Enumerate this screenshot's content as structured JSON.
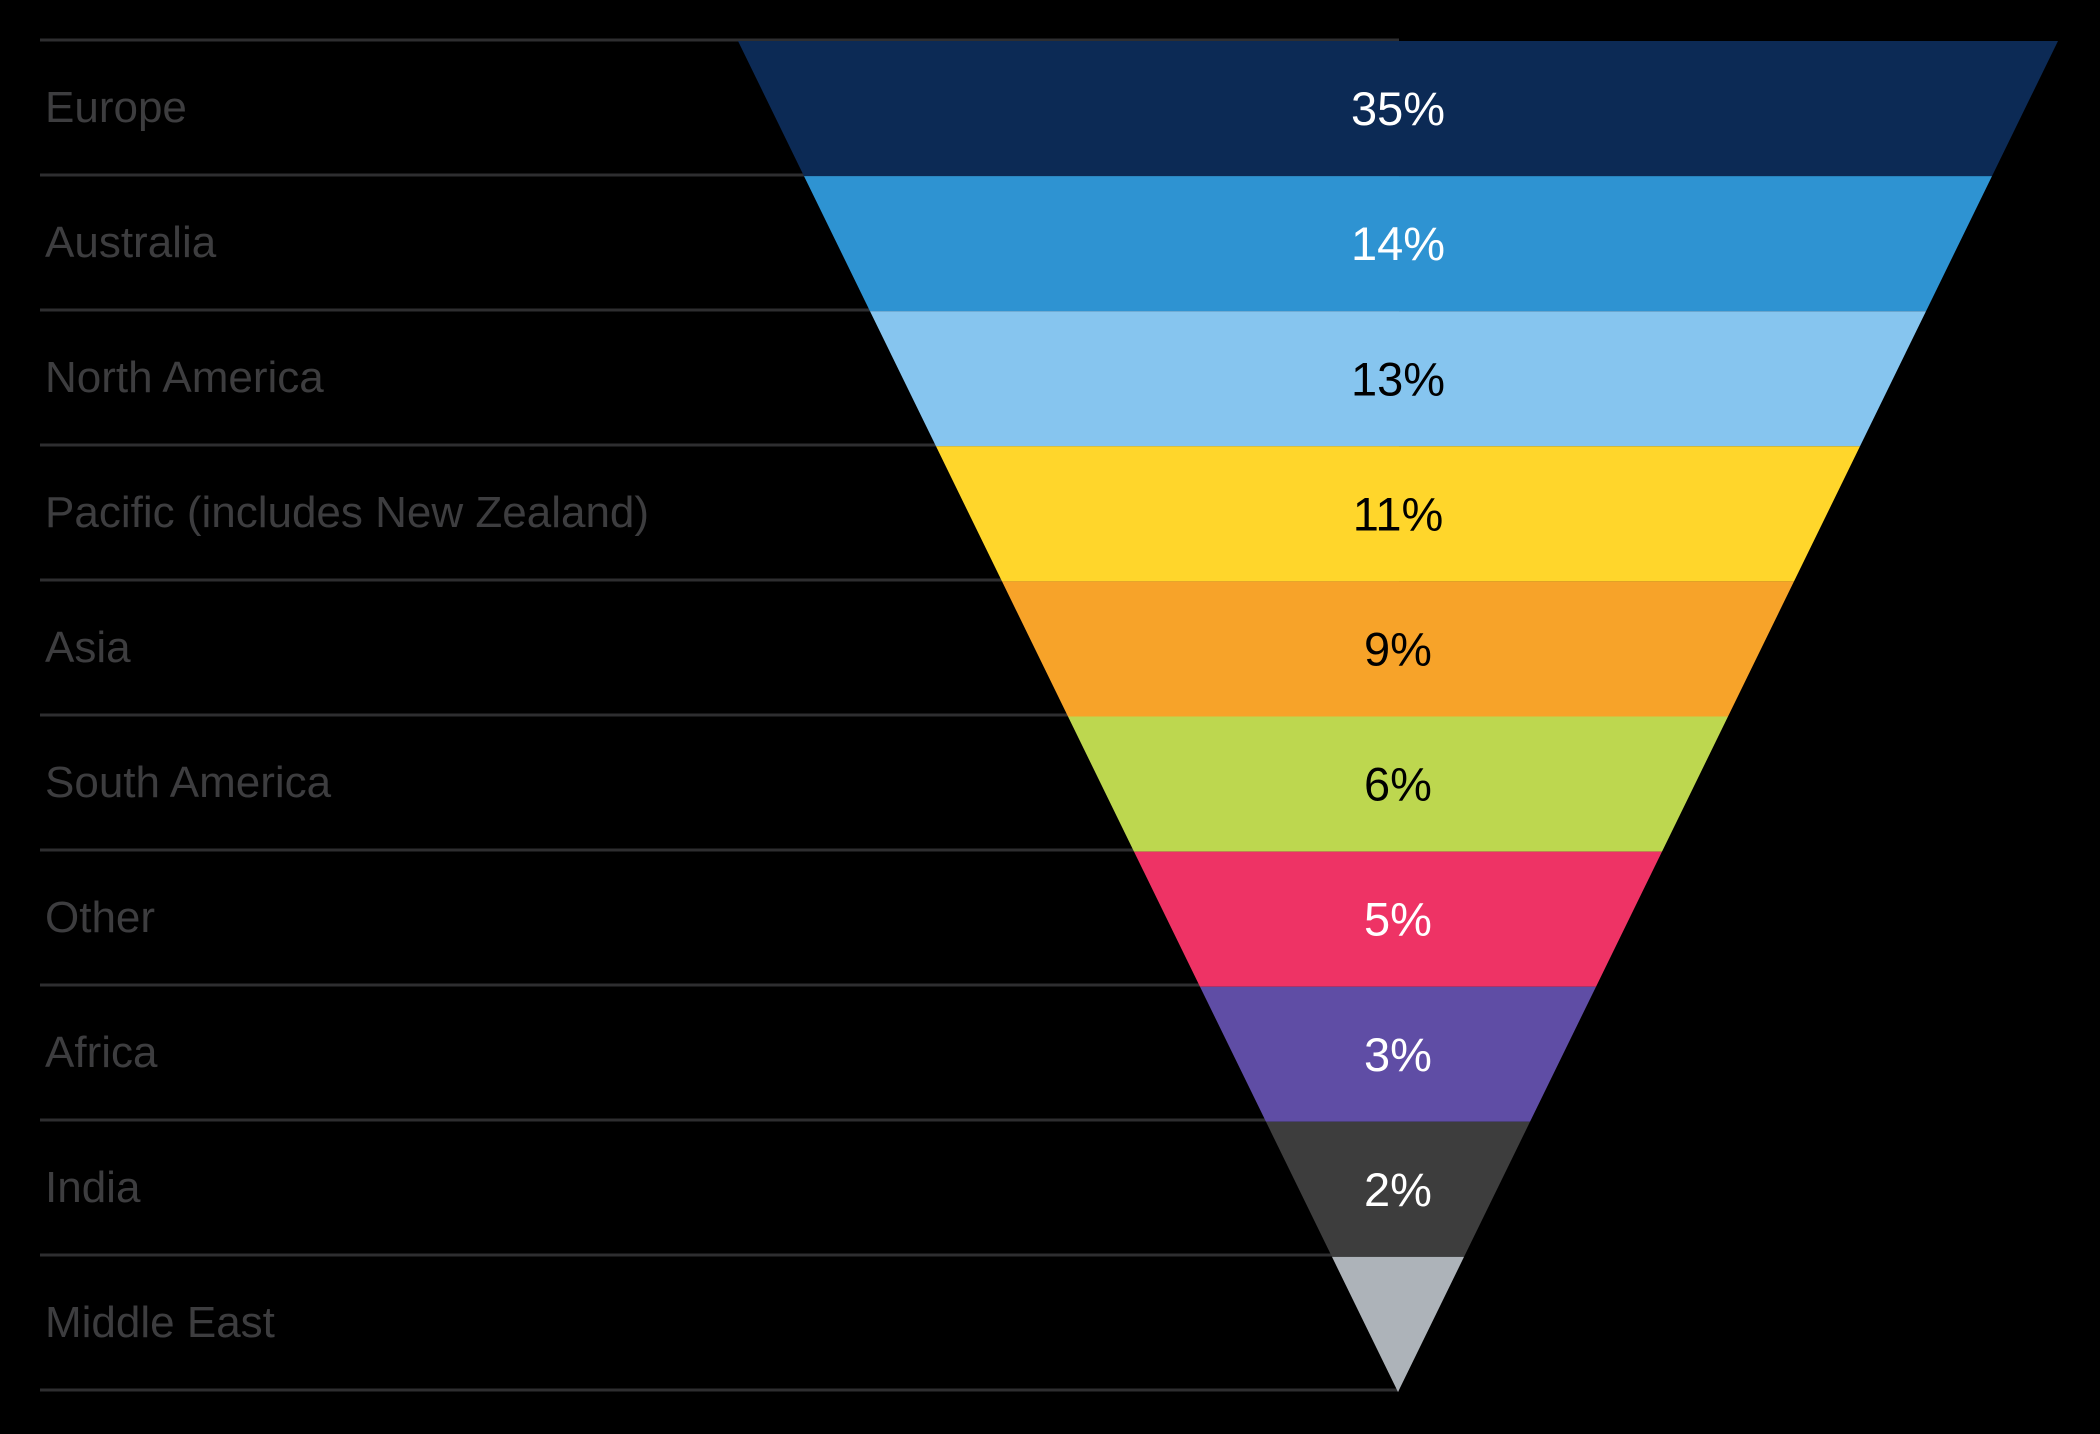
{
  "chart_data": {
    "type": "funnel",
    "orientation": "inverted_pyramid",
    "title": "",
    "legend": "none",
    "background": "#000000",
    "separator_color": "#2e2e30",
    "category_label_color": "#3d3d3f",
    "categories": [
      "Europe",
      "Australia",
      "North America",
      "Pacific (includes New Zealand)",
      "Asia",
      "South America",
      "Other",
      "Africa",
      "India",
      "Middle East"
    ],
    "values": [
      35,
      14,
      13,
      11,
      9,
      6,
      5,
      3,
      2,
      null
    ],
    "rows": [
      {
        "label": "Europe",
        "value_label": "35%",
        "color": "#0c2a55",
        "value_color": "#ffffff"
      },
      {
        "label": "Australia",
        "value_label": "14%",
        "color": "#2e93d2",
        "value_color": "#ffffff"
      },
      {
        "label": "North America",
        "value_label": "13%",
        "color": "#86c5ef",
        "value_color": "#000000"
      },
      {
        "label": "Pacific (includes New Zealand)",
        "value_label": "11%",
        "color": "#ffd62b",
        "value_color": "#000000"
      },
      {
        "label": "Asia",
        "value_label": "9%",
        "color": "#f7a329",
        "value_color": "#000000"
      },
      {
        "label": "South America",
        "value_label": "6%",
        "color": "#bdd74f",
        "value_color": "#000000"
      },
      {
        "label": "Other",
        "value_label": "5%",
        "color": "#ee3365",
        "value_color": "#ffffff"
      },
      {
        "label": "Africa",
        "value_label": "3%",
        "color": "#5f4da5",
        "value_color": "#ffffff"
      },
      {
        "label": "India",
        "value_label": "2%",
        "color": "#3d3d3d",
        "value_color": "#ffffff"
      },
      {
        "label": "Middle East",
        "value_label": null,
        "color": "#adb3b9",
        "value_color": null
      }
    ]
  }
}
